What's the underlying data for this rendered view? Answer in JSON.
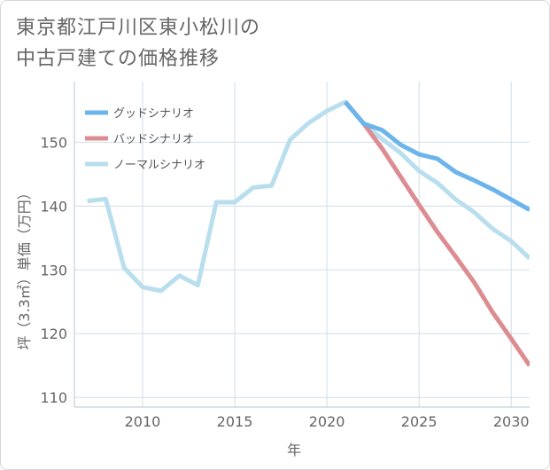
{
  "title_line1": "東京都江戸川区東小松川の",
  "title_line2": "中古戸建ての価格推移",
  "chart_data": {
    "type": "line",
    "xlabel": "年",
    "ylabel": "坪（3.3㎡）単価（万円）",
    "xlim": [
      2006.3,
      2031
    ],
    "ylim": [
      108.5,
      159.5
    ],
    "xticks": [
      2010,
      2015,
      2020,
      2025,
      2030
    ],
    "yticks": [
      110,
      120,
      130,
      140,
      150
    ],
    "grid": true,
    "legend_position": "top-left",
    "series": [
      {
        "name": "グッドシナリオ",
        "color": "#6cb4ec",
        "x": [
          2021,
          2022,
          2023,
          2024,
          2025,
          2026,
          2027,
          2028,
          2029,
          2030,
          2031
        ],
        "y": [
          156.3,
          152.9,
          151.9,
          149.6,
          148.1,
          147.4,
          145.3,
          144.0,
          142.6,
          141.0,
          139.4
        ]
      },
      {
        "name": "バッドシナリオ",
        "color": "#dc8d92",
        "x": [
          2021,
          2022,
          2023,
          2024,
          2025,
          2026,
          2027,
          2028,
          2029,
          2030,
          2031
        ],
        "y": [
          156.3,
          152.9,
          149.0,
          144.6,
          140.2,
          135.9,
          132.0,
          128.0,
          123.3,
          119.2,
          115.0
        ]
      },
      {
        "name": "ノーマルシナリオ",
        "color": "#b9deee",
        "x": [
          2007,
          2008,
          2009,
          2010,
          2011,
          2012,
          2013,
          2014,
          2015,
          2016,
          2017,
          2018,
          2019,
          2020,
          2021,
          2022,
          2023,
          2024,
          2025,
          2026,
          2027,
          2028,
          2029,
          2030,
          2031
        ],
        "y": [
          140.8,
          141.1,
          130.3,
          127.3,
          126.7,
          129.1,
          127.6,
          140.6,
          140.6,
          142.9,
          143.2,
          150.4,
          153.0,
          154.9,
          156.3,
          152.9,
          150.5,
          148.3,
          145.5,
          143.6,
          141.0,
          139.0,
          136.4,
          134.5,
          131.8
        ]
      }
    ]
  }
}
